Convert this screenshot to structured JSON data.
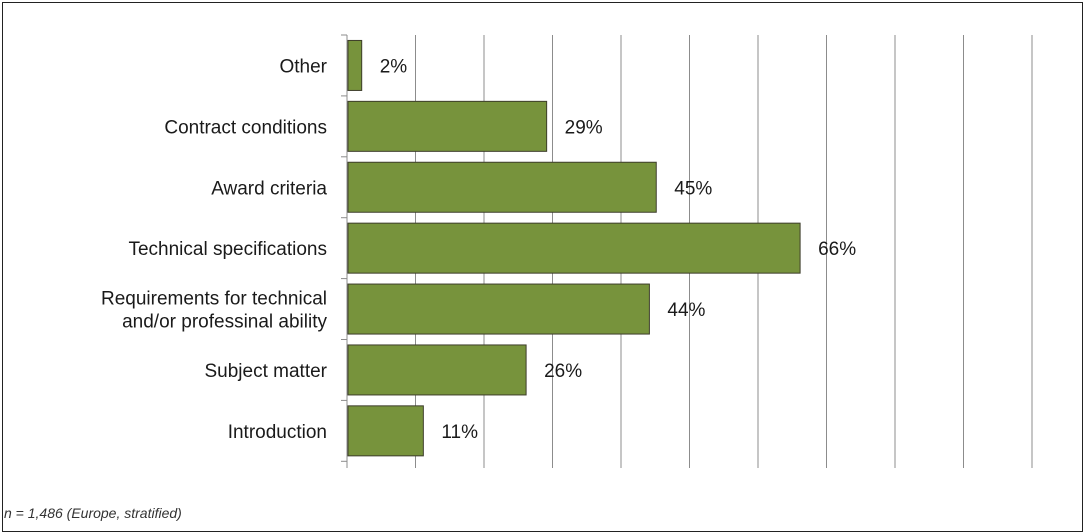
{
  "chart_data": {
    "type": "bar",
    "orientation": "horizontal",
    "categories": [
      "Other",
      "Contract conditions",
      "Award criteria",
      "Technical specifications",
      [
        "Requirements for technical",
        "and/or professinal ability"
      ],
      "Subject matter",
      "Introduction"
    ],
    "values": [
      2,
      29,
      45,
      66,
      44,
      26,
      11
    ],
    "value_labels": [
      "2%",
      "29%",
      "45%",
      "66%",
      "44%",
      "26%",
      "11%"
    ],
    "xlim": [
      0,
      100
    ],
    "gridlines": true,
    "legend": "none",
    "bar_color": "#77933c",
    "bar_border_color": "#3d3d2a"
  },
  "footnote": "n = 1,486 (Europe, stratified)"
}
